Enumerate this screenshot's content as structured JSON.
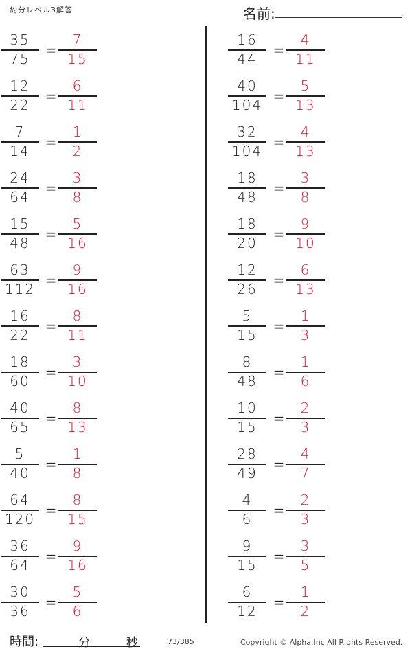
{
  "header": {
    "title": "約分レベル3解答",
    "name_label": "名前:",
    "name_dot": "."
  },
  "colors": {
    "answer": "#e8102a",
    "text": "#222222"
  },
  "equals": "=",
  "left_column": [
    {
      "q_num": "35",
      "q_den": "75",
      "a_num": "7",
      "a_den": "15"
    },
    {
      "q_num": "12",
      "q_den": "22",
      "a_num": "6",
      "a_den": "11"
    },
    {
      "q_num": "7",
      "q_den": "14",
      "a_num": "1",
      "a_den": "2"
    },
    {
      "q_num": "24",
      "q_den": "64",
      "a_num": "3",
      "a_den": "8"
    },
    {
      "q_num": "15",
      "q_den": "48",
      "a_num": "5",
      "a_den": "16"
    },
    {
      "q_num": "63",
      "q_den": "112",
      "a_num": "9",
      "a_den": "16"
    },
    {
      "q_num": "16",
      "q_den": "22",
      "a_num": "8",
      "a_den": "11"
    },
    {
      "q_num": "18",
      "q_den": "60",
      "a_num": "3",
      "a_den": "10"
    },
    {
      "q_num": "40",
      "q_den": "65",
      "a_num": "8",
      "a_den": "13"
    },
    {
      "q_num": "5",
      "q_den": "40",
      "a_num": "1",
      "a_den": "8"
    },
    {
      "q_num": "64",
      "q_den": "120",
      "a_num": "8",
      "a_den": "15"
    },
    {
      "q_num": "36",
      "q_den": "64",
      "a_num": "9",
      "a_den": "16"
    },
    {
      "q_num": "30",
      "q_den": "36",
      "a_num": "5",
      "a_den": "6"
    }
  ],
  "right_column": [
    {
      "q_num": "16",
      "q_den": "44",
      "a_num": "4",
      "a_den": "11"
    },
    {
      "q_num": "40",
      "q_den": "104",
      "a_num": "5",
      "a_den": "13"
    },
    {
      "q_num": "32",
      "q_den": "104",
      "a_num": "4",
      "a_den": "13"
    },
    {
      "q_num": "18",
      "q_den": "48",
      "a_num": "3",
      "a_den": "8"
    },
    {
      "q_num": "18",
      "q_den": "20",
      "a_num": "9",
      "a_den": "10"
    },
    {
      "q_num": "12",
      "q_den": "26",
      "a_num": "6",
      "a_den": "13"
    },
    {
      "q_num": "5",
      "q_den": "15",
      "a_num": "1",
      "a_den": "3"
    },
    {
      "q_num": "8",
      "q_den": "48",
      "a_num": "1",
      "a_den": "6"
    },
    {
      "q_num": "10",
      "q_den": "15",
      "a_num": "2",
      "a_den": "3"
    },
    {
      "q_num": "28",
      "q_den": "49",
      "a_num": "4",
      "a_den": "7"
    },
    {
      "q_num": "4",
      "q_den": "6",
      "a_num": "2",
      "a_den": "3"
    },
    {
      "q_num": "9",
      "q_den": "15",
      "a_num": "3",
      "a_den": "5"
    },
    {
      "q_num": "6",
      "q_den": "12",
      "a_num": "1",
      "a_den": "2"
    }
  ],
  "footer": {
    "time_label": "時間:",
    "minutes_label": "分",
    "seconds_label": "秒",
    "page": "73/385",
    "copyright": "Copyright ©  Alpha.Inc All Rights Reserved."
  }
}
